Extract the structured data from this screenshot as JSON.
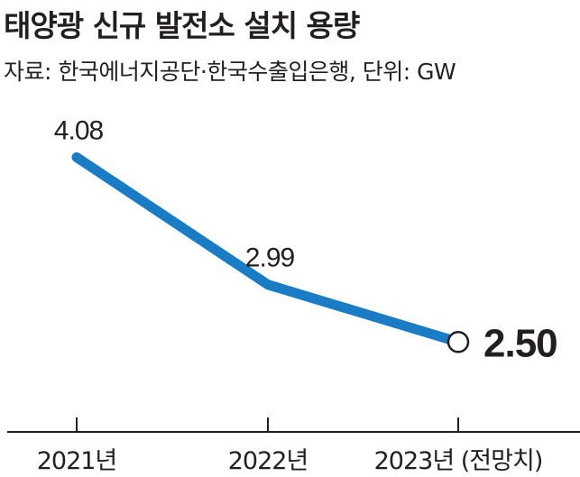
{
  "title": "태양광 신규 발전소 설치 용량",
  "subtitle": "자료: 한국에너지공단·한국수출입은행, 단위: GW",
  "colors": {
    "line": "#1a7cc4",
    "text": "#231f20",
    "axis": "#231f20",
    "marker_fill": "#ffffff"
  },
  "chart_data": {
    "type": "line",
    "title": "태양광 신규 발전소 설치 용량",
    "categories": [
      "2021년",
      "2022년",
      "2023년 (전망치)"
    ],
    "values": [
      4.08,
      2.99,
      2.5
    ],
    "data_labels": [
      "4.08",
      "2.99",
      "2.50"
    ],
    "highlight_index": 2,
    "ylim": [
      1.8,
      4.5
    ],
    "grid": false,
    "legend": "none",
    "xlabel": "",
    "ylabel": ""
  }
}
